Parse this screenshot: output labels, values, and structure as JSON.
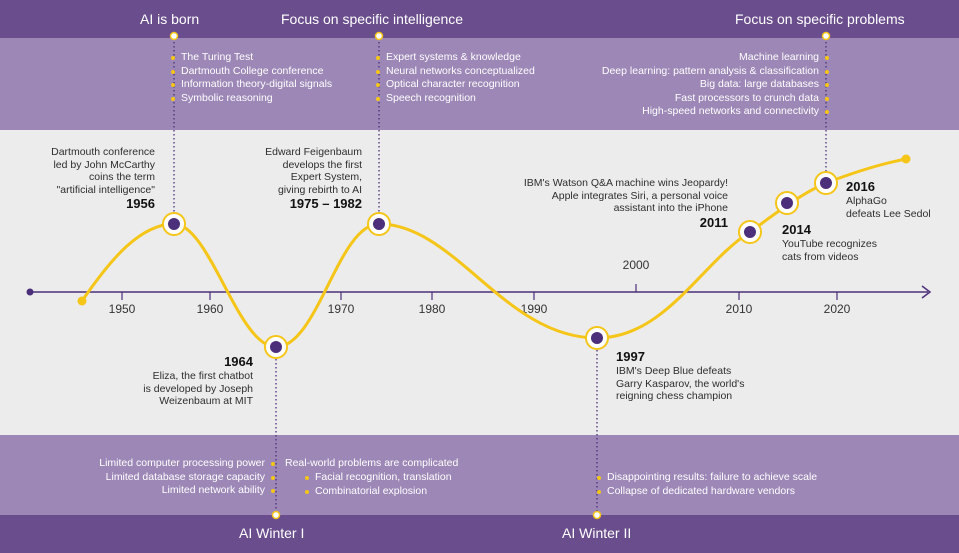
{
  "headers": {
    "ai_born": "AI is born",
    "focus_intel": "Focus on specific intelligence",
    "focus_problems": "Focus on specific problems",
    "winter1": "AI Winter I",
    "winter2": "AI Winter II"
  },
  "top_lists": {
    "born": [
      "The Turing Test",
      "Dartmouth College conference",
      "Information theory-digital signals",
      "Symbolic reasoning"
    ],
    "intel": [
      "Expert systems & knowledge",
      "Neural networks conceptualized",
      "Optical character recognition",
      "Speech recognition"
    ],
    "problems": [
      "Machine learning",
      "Deep learning: pattern analysis & classification",
      "Big data: large databases",
      "Fast processors to crunch data",
      "High-speed networks and connectivity"
    ]
  },
  "bottom_lists": {
    "winter1_left": [
      "Limited computer processing power",
      "Limited database storage capacity",
      "Limited network ability"
    ],
    "winter1_right_head": "Real-world problems are complicated",
    "winter1_right": [
      "Facial recognition, translation",
      "Combinatorial explosion"
    ],
    "winter2": [
      "Disappointing results: failure to achieve scale",
      "Collapse of dedicated hardware vendors"
    ]
  },
  "events": {
    "e1956": {
      "text": [
        "Dartmouth conference",
        "led by John McCarthy",
        "coins the term",
        "\"artificial intelligence\""
      ],
      "year": "1956"
    },
    "e1964": {
      "year": "1964",
      "text": [
        "Eliza, the first chatbot",
        "is developed by Joseph",
        "Weizenbaum at MIT"
      ]
    },
    "e1975": {
      "text": [
        "Edward Feigenbaum",
        "develops the first",
        "Expert System,",
        "giving rebirth to AI"
      ],
      "year": "1975 – 1982"
    },
    "e1997": {
      "year": "1997",
      "text": [
        "IBM's Deep Blue defeats",
        "Garry Kasparov, the world's",
        "reigning chess champion"
      ]
    },
    "e2011": {
      "text": [
        "IBM's Watson Q&A machine wins Jeopardy!",
        "Apple integrates Siri, a personal voice",
        "assistant into the iPhone"
      ],
      "year": "2011"
    },
    "e2014": {
      "year": "2014",
      "text": [
        "YouTube recognizes",
        "cats from videos"
      ]
    },
    "e2016": {
      "year": "2016",
      "text": [
        "AlphaGo",
        "defeats Lee Sedol"
      ]
    }
  },
  "axis": {
    "ticks": [
      "1950",
      "1960",
      "1970",
      "1980",
      "1990",
      "2000",
      "2010",
      "2020"
    ],
    "years": [
      1950,
      1960,
      1970,
      1980,
      1990,
      2000,
      2010,
      2020
    ]
  },
  "colors": {
    "dark_purple": "#6a4d8c",
    "light_purple": "#9c87b6",
    "curve": "#f5c518",
    "dot": "#4b2f7a",
    "axis": "#4b2f7a"
  }
}
